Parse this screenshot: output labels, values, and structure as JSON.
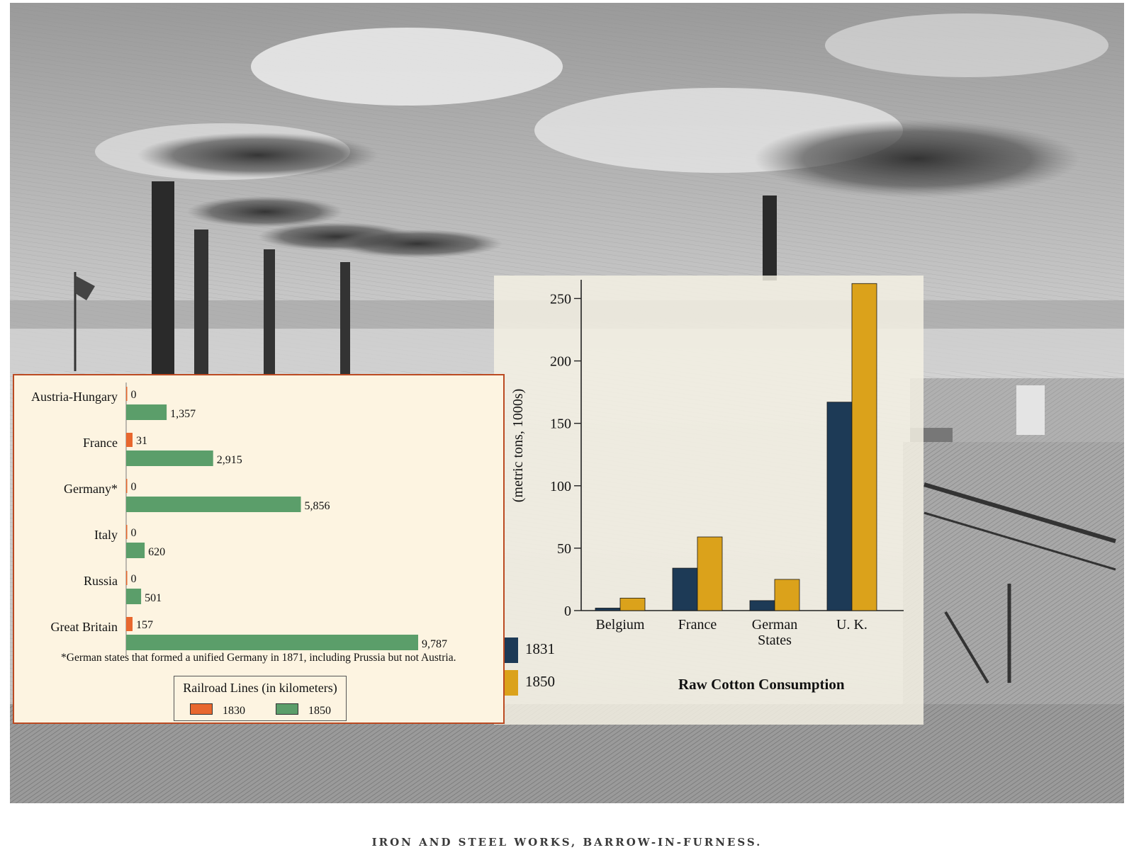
{
  "caption": "IRON AND STEEL WORKS, BARROW-IN-FURNESS.",
  "colors": {
    "rail_1830": "#e8672e",
    "rail_1850": "#5b9e6a",
    "cotton_1831": "#1d3a56",
    "cotton_1850": "#dba21b",
    "rail_border": "#bb4a22"
  },
  "railroad": {
    "footnote": "*German states that formed a unified Germany in 1871, including Prussia but not Austria.",
    "legend_title": "Railroad Lines (in kilometers)",
    "legend_1830": "1830",
    "legend_1850": "1850"
  },
  "cotton": {
    "title": "Raw Cotton Consumption",
    "legend_1831": "1831",
    "legend_1850": "1850"
  },
  "chart_data": [
    {
      "type": "bar",
      "orientation": "horizontal",
      "title": "Railroad Lines (in kilometers)",
      "categories": [
        "Austria-Hungary",
        "France",
        "Germany*",
        "Italy",
        "Russia",
        "Great Britain"
      ],
      "series": [
        {
          "name": "1830",
          "values": [
            0,
            31,
            0,
            0,
            0,
            157
          ],
          "labels": [
            "0",
            "31",
            "0",
            "0",
            "0",
            "157"
          ]
        },
        {
          "name": "1850",
          "values": [
            1357,
            2915,
            5856,
            620,
            501,
            9787
          ],
          "labels": [
            "1,357",
            "2,915",
            "5,856",
            "620",
            "501",
            "9,787"
          ]
        }
      ],
      "xlim": [
        0,
        9787
      ],
      "legend": "bottom",
      "grid": false
    },
    {
      "type": "bar",
      "title": "Raw Cotton Consumption",
      "categories": [
        "Belgium",
        "France",
        "German States",
        "U. K."
      ],
      "series": [
        {
          "name": "1831",
          "values": [
            2,
            34,
            8,
            167
          ]
        },
        {
          "name": "1850",
          "values": [
            10,
            59,
            25,
            262
          ]
        }
      ],
      "ylabel": "(metric tons, 1000s)",
      "ylim": [
        0,
        265
      ],
      "yticks": [
        "0",
        "50",
        "100",
        "150",
        "200",
        "250"
      ],
      "legend": "bottom-left",
      "grid": false
    }
  ]
}
